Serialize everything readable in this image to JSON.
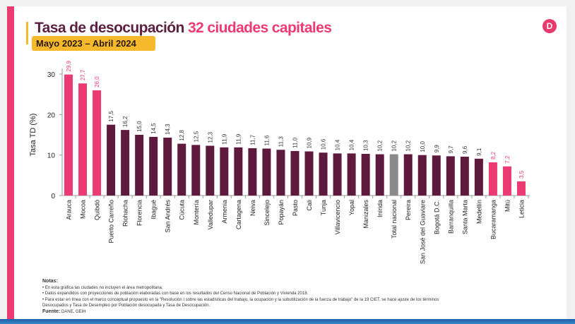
{
  "header": {
    "title_main": "Tasa de desocupación",
    "title_highlight": "32 ciudades capitales",
    "subtitle": "Mayo 2023 – Abril 2024",
    "logo_letter": "D"
  },
  "colors": {
    "pink": "#ec3a72",
    "purple": "#5e1a3d",
    "gray": "#8a8a8a"
  },
  "chart_data": {
    "type": "bar",
    "ylabel": "Tasa TD (%)",
    "ylim": [
      0,
      30
    ],
    "yticks": [
      0,
      10,
      20,
      30
    ],
    "grid": false,
    "categories": [
      "Arauca",
      "Mocoa",
      "Quibdó",
      "Puerto Carreño",
      "Riohacha",
      "Florencia",
      "Ibagué",
      "San Andrés",
      "Cúcuta",
      "Montería",
      "Valledupar",
      "Armenia",
      "Cartagena",
      "Neiva",
      "Sincelejo",
      "Popayán",
      "Pasto",
      "Cali",
      "Tunja",
      "Villavicencio",
      "Yopal",
      "Manizales",
      "Inírida",
      "Total nacional",
      "Pereira",
      "San José del Guaviare",
      "Bogotá D.C.",
      "Barranquilla",
      "Santa Marta",
      "Medellín",
      "Bucaramanga",
      "Mitú",
      "Leticia"
    ],
    "values": [
      29.9,
      27.7,
      26.0,
      17.5,
      16.2,
      15.0,
      14.5,
      14.3,
      12.8,
      12.5,
      12.3,
      11.9,
      11.9,
      11.7,
      11.6,
      11.3,
      11.0,
      10.9,
      10.6,
      10.4,
      10.4,
      10.3,
      10.2,
      10.2,
      10.2,
      10.0,
      9.9,
      9.7,
      9.6,
      9.1,
      8.2,
      7.2,
      3.5
    ],
    "data_labels": [
      "29,9",
      "27,7",
      "26,0",
      "17,5",
      "16,2",
      "15,0",
      "14,5",
      "14,3",
      "12,8",
      "12,5",
      "12,3",
      "11,9",
      "11,9",
      "11,7",
      "11,6",
      "11,3",
      "11,0",
      "10,9",
      "10,6",
      "10,4",
      "10,4",
      "10,3",
      "10,2",
      "10,2",
      "10,2",
      "10,0",
      "9,9",
      "9,7",
      "9,6",
      "9,1",
      "8,2",
      "7,2",
      "3,5"
    ],
    "bar_colors": [
      "pink",
      "pink",
      "pink",
      "purple",
      "purple",
      "purple",
      "purple",
      "purple",
      "purple",
      "purple",
      "purple",
      "purple",
      "purple",
      "purple",
      "purple",
      "purple",
      "purple",
      "purple",
      "purple",
      "purple",
      "purple",
      "purple",
      "purple",
      "gray",
      "purple",
      "purple",
      "purple",
      "purple",
      "purple",
      "purple",
      "pink",
      "pink",
      "pink"
    ]
  },
  "notes": {
    "heading": "Notas:",
    "items": [
      "• En esta gráfica las ciudades no incluyen el área metropolitana.",
      "• Datos expandidos con proyecciones de población elaboradas con base en los resultados del Censo Nacional de Población y Vivienda 2018.",
      "• Para estar en línea con el marco conceptual propuesto en la \"Resolución I sobre las estadísticas del trabajo, la ocupación y la subutilización de la fuerza de trabajo\" de la 19 CIET, se hace ajuste de los términos",
      "Desocupados y Tasa de Desempleo por Población desocupada y Tasa de Desocupación."
    ],
    "source_label": "Fuente:",
    "source": "DANE, GEIH"
  }
}
